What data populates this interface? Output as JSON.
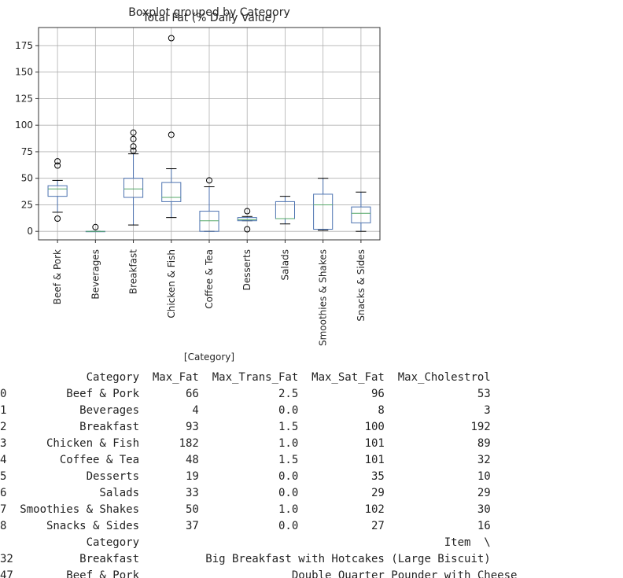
{
  "chart_data": {
    "type": "boxplot",
    "suptitle": "Boxplot grouped by Category",
    "title": "Total Fat (% Daily Value)",
    "xlabel": "[Category]",
    "ylabel": "",
    "ylim": [
      -8,
      192
    ],
    "yticks": [
      0,
      25,
      50,
      75,
      100,
      125,
      150,
      175
    ],
    "grid": true,
    "box_color": "#4C72B0",
    "median_color": "#55A868",
    "categories": [
      "Beef & Pork",
      "Beverages",
      "Breakfast",
      "Chicken & Fish",
      "Coffee & Tea",
      "Desserts",
      "Salads",
      "Smoothies & Shakes",
      "Snacks & Sides"
    ],
    "boxes": [
      {
        "category": "Beef & Pork",
        "whisker_low": 18,
        "q1": 33,
        "median": 40,
        "q3": 43,
        "whisker_high": 48,
        "outliers": [
          12,
          62,
          66
        ]
      },
      {
        "category": "Beverages",
        "whisker_low": 0,
        "q1": 0,
        "median": 0,
        "q3": 0,
        "whisker_high": 0,
        "outliers": [
          4
        ]
      },
      {
        "category": "Breakfast",
        "whisker_low": 6,
        "q1": 32,
        "median": 40,
        "q3": 50,
        "whisker_high": 73,
        "outliers": [
          76,
          80,
          87,
          93
        ]
      },
      {
        "category": "Chicken & Fish",
        "whisker_low": 13,
        "q1": 28,
        "median": 32,
        "q3": 46,
        "whisker_high": 59,
        "outliers": [
          91,
          182
        ]
      },
      {
        "category": "Coffee & Tea",
        "whisker_low": 0,
        "q1": 0,
        "median": 10,
        "q3": 19,
        "whisker_high": 42,
        "outliers": [
          48
        ]
      },
      {
        "category": "Desserts",
        "whisker_low": 10,
        "q1": 10,
        "median": 11,
        "q3": 13,
        "whisker_high": 14,
        "outliers": [
          2,
          19
        ]
      },
      {
        "category": "Salads",
        "whisker_low": 7,
        "q1": 12,
        "median": 12,
        "q3": 28,
        "whisker_high": 33,
        "outliers": []
      },
      {
        "category": "Smoothies & Shakes",
        "whisker_low": 1,
        "q1": 2,
        "median": 25,
        "q3": 35,
        "whisker_high": 50,
        "outliers": []
      },
      {
        "category": "Snacks & Sides",
        "whisker_low": 0,
        "q1": 8,
        "median": 17,
        "q3": 23,
        "whisker_high": 37,
        "outliers": []
      }
    ]
  },
  "output": {
    "lines": [
      "             Category  Max_Fat  Max_Trans_Fat  Max_Sat_Fat  Max_Cholestrol",
      "0         Beef & Pork       66            2.5           96              53",
      "1           Beverages        4            0.0            8               3",
      "2           Breakfast       93            1.5          100             192",
      "3      Chicken & Fish      182            1.0          101              89",
      "4        Coffee & Tea       48            1.5          101              32",
      "5            Desserts       19            0.0           35              10",
      "6              Salads       33            0.0           29              29",
      "7  Smoothies & Shakes       50            1.0          102              30",
      "8      Snacks & Sides       37            0.0           27              16",
      "             Category                                              Item  \\",
      "32          Breakfast          Big Breakfast with Hotcakes (Large Biscuit)",
      "47        Beef & Pork                       Double Quarter Pounder with Cheese"
    ]
  }
}
